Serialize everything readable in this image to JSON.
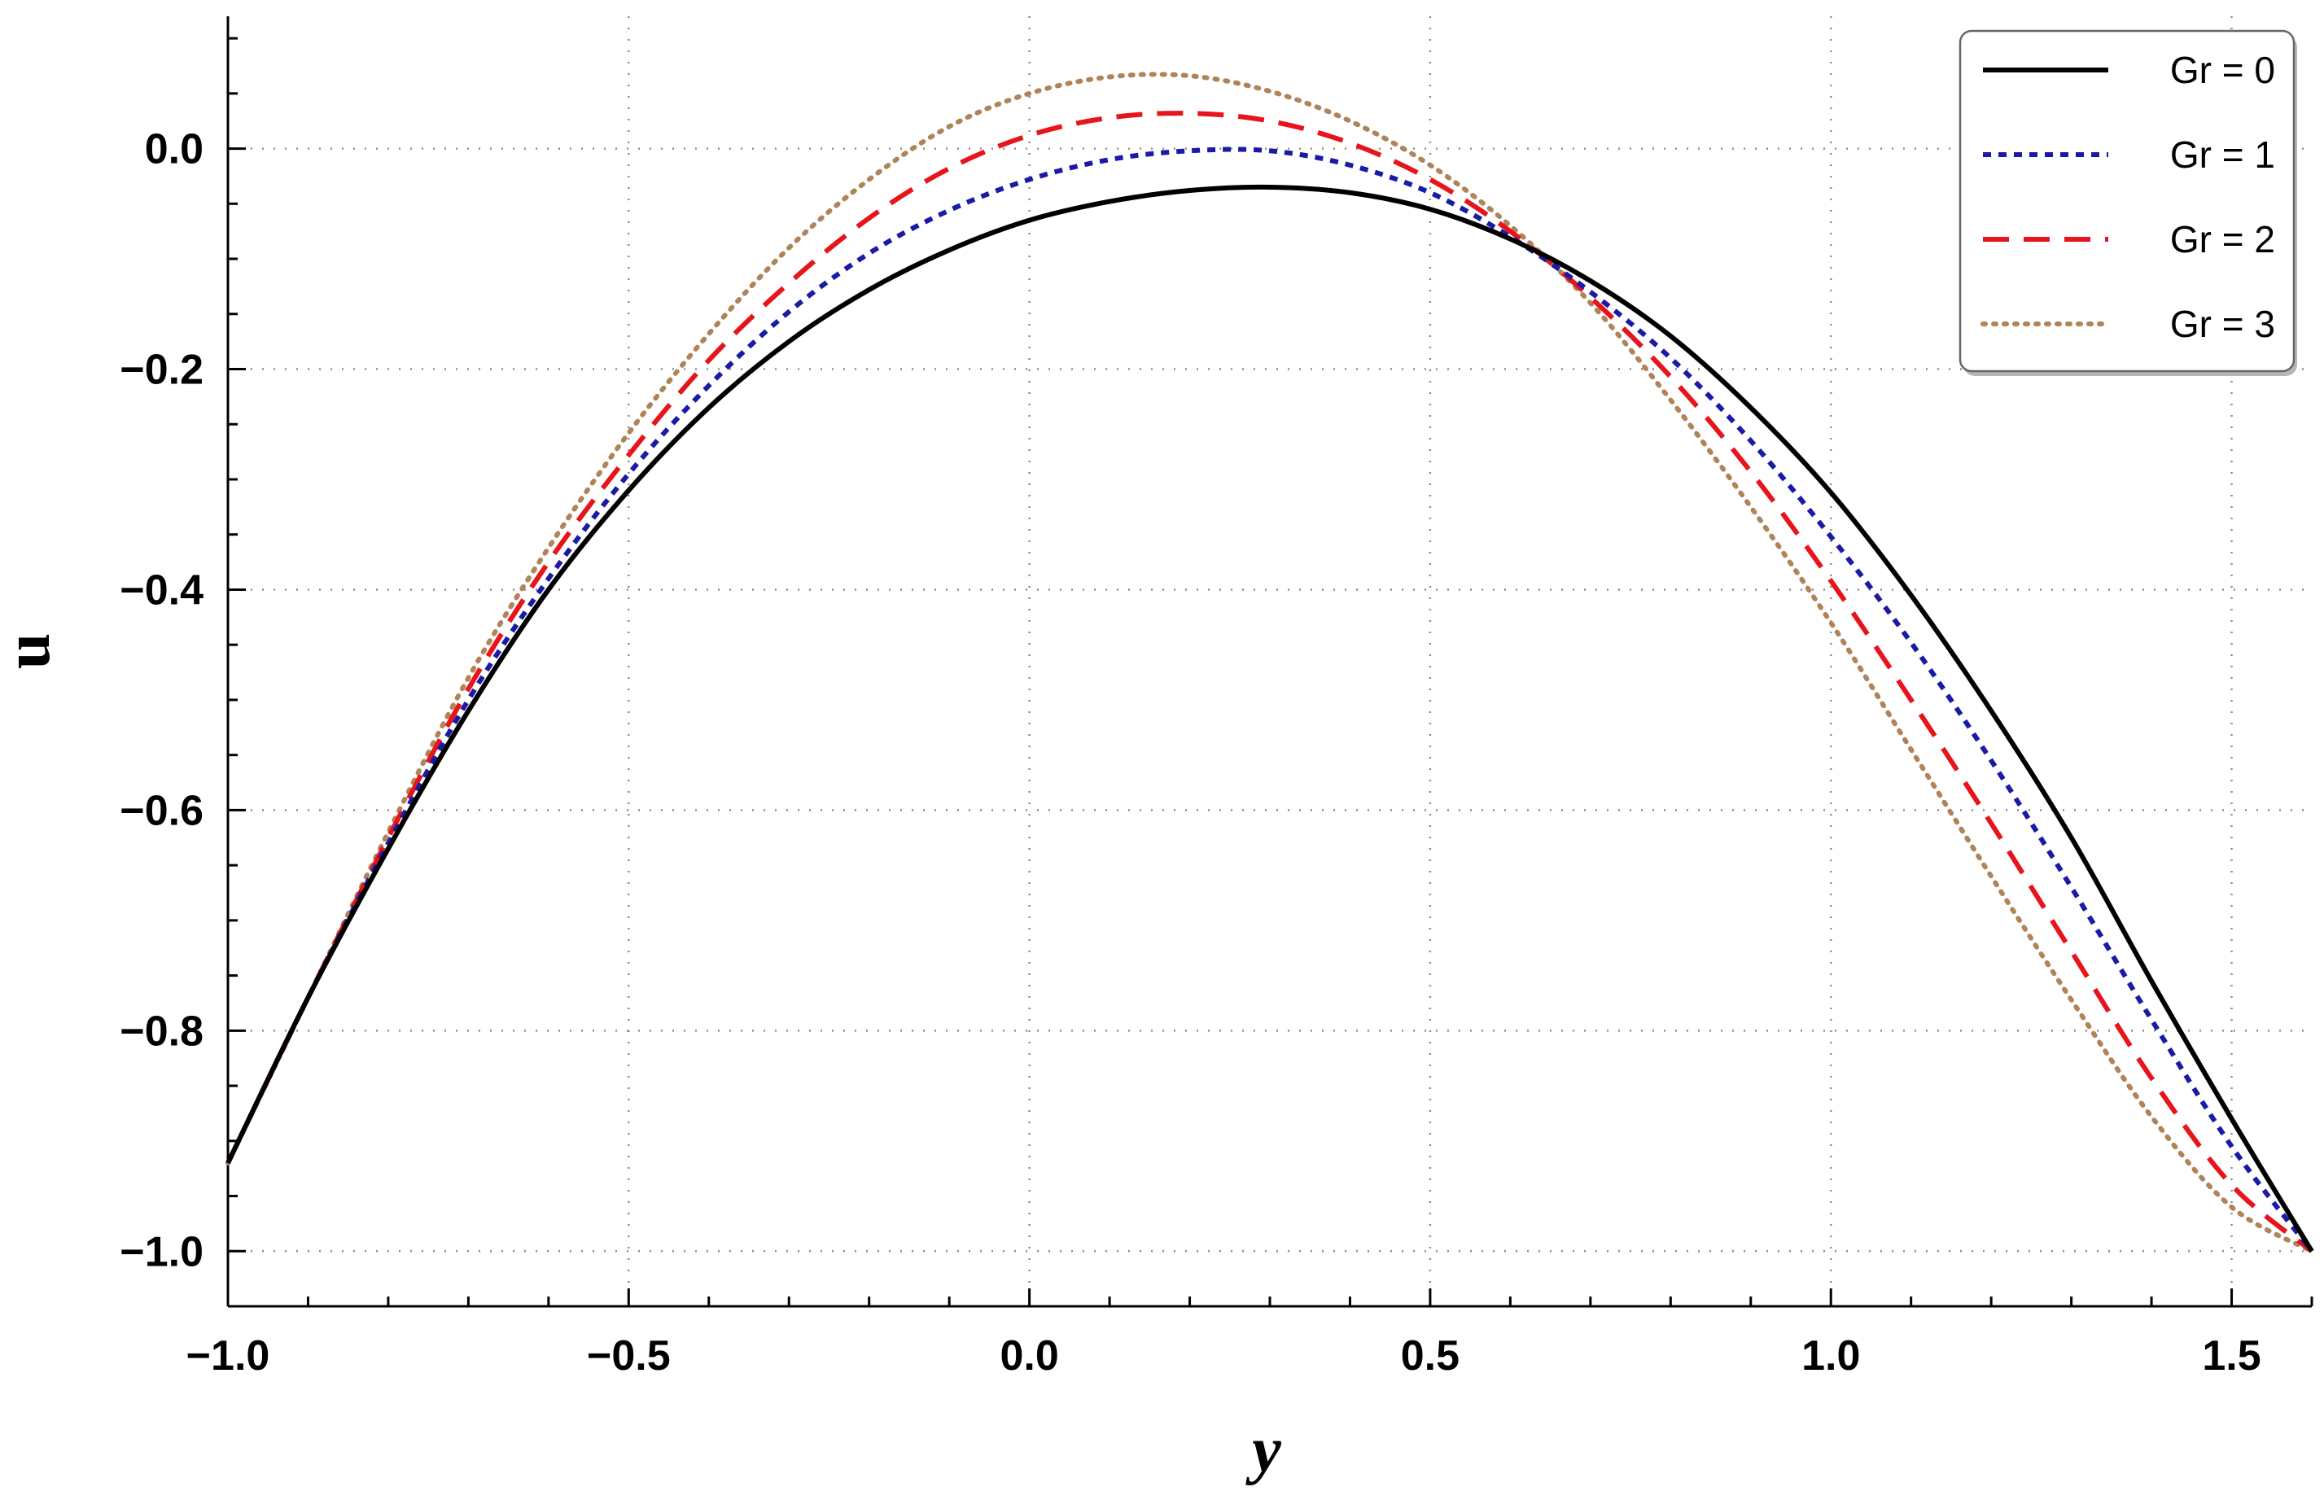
{
  "chart_data": {
    "type": "line",
    "title": "",
    "xlabel": "y",
    "ylabel": "u",
    "xlim": [
      -1.0,
      1.6
    ],
    "ylim": [
      -1.05,
      0.12
    ],
    "grid": true,
    "legend_position": "top-right",
    "x_ticks": [
      "-1.0",
      "-0.5",
      "0.0",
      "0.5",
      "1.0",
      "1.5"
    ],
    "y_ticks": [
      "0.0",
      "-0.2",
      "-0.4",
      "-0.6",
      "-0.8",
      "-1.0"
    ],
    "x_tick_values": [
      -1.0,
      -0.5,
      0.0,
      0.5,
      1.0,
      1.5
    ],
    "y_tick_values": [
      0.0,
      -0.2,
      -0.4,
      -0.6,
      -0.8,
      -1.0
    ],
    "x": [
      -1.0,
      -0.9,
      -0.8,
      -0.7,
      -0.6,
      -0.5,
      -0.4,
      -0.3,
      -0.2,
      -0.1,
      0.0,
      0.1,
      0.2,
      0.3,
      0.4,
      0.5,
      0.6,
      0.7,
      0.8,
      0.9,
      1.0,
      1.1,
      1.2,
      1.3,
      1.4,
      1.5,
      1.6
    ],
    "series": [
      {
        "name": "Gr = 0",
        "color": "#000000",
        "dash": "solid",
        "values": [
          -0.92,
          -0.77,
          -0.635,
          -0.51,
          -0.4,
          -0.31,
          -0.235,
          -0.175,
          -0.128,
          -0.092,
          -0.065,
          -0.048,
          -0.038,
          -0.035,
          -0.04,
          -0.055,
          -0.082,
          -0.12,
          -0.17,
          -0.235,
          -0.312,
          -0.405,
          -0.51,
          -0.625,
          -0.755,
          -0.88,
          -1.0
        ]
      },
      {
        "name": "Gr = 1",
        "color": "#1a1aa6",
        "dash": "short",
        "values": [
          -0.92,
          -0.77,
          -0.63,
          -0.5,
          -0.39,
          -0.295,
          -0.215,
          -0.148,
          -0.095,
          -0.056,
          -0.028,
          -0.01,
          -0.002,
          -0.002,
          -0.015,
          -0.04,
          -0.08,
          -0.13,
          -0.19,
          -0.265,
          -0.352,
          -0.448,
          -0.555,
          -0.67,
          -0.79,
          -0.905,
          -1.0
        ]
      },
      {
        "name": "Gr = 2",
        "color": "#e8141c",
        "dash": "long",
        "values": [
          -0.92,
          -0.77,
          -0.625,
          -0.49,
          -0.375,
          -0.278,
          -0.192,
          -0.122,
          -0.063,
          -0.018,
          0.012,
          0.028,
          0.032,
          0.025,
          0.005,
          -0.028,
          -0.075,
          -0.135,
          -0.207,
          -0.293,
          -0.392,
          -0.5,
          -0.612,
          -0.728,
          -0.843,
          -0.94,
          -1.0
        ]
      },
      {
        "name": "Gr = 3",
        "color": "#b08358",
        "dash": "dotted",
        "values": [
          -0.92,
          -0.77,
          -0.62,
          -0.48,
          -0.362,
          -0.258,
          -0.168,
          -0.09,
          -0.028,
          0.02,
          0.05,
          0.065,
          0.066,
          0.052,
          0.025,
          -0.015,
          -0.07,
          -0.14,
          -0.228,
          -0.325,
          -0.43,
          -0.545,
          -0.66,
          -0.772,
          -0.878,
          -0.96,
          -1.0
        ]
      }
    ]
  }
}
